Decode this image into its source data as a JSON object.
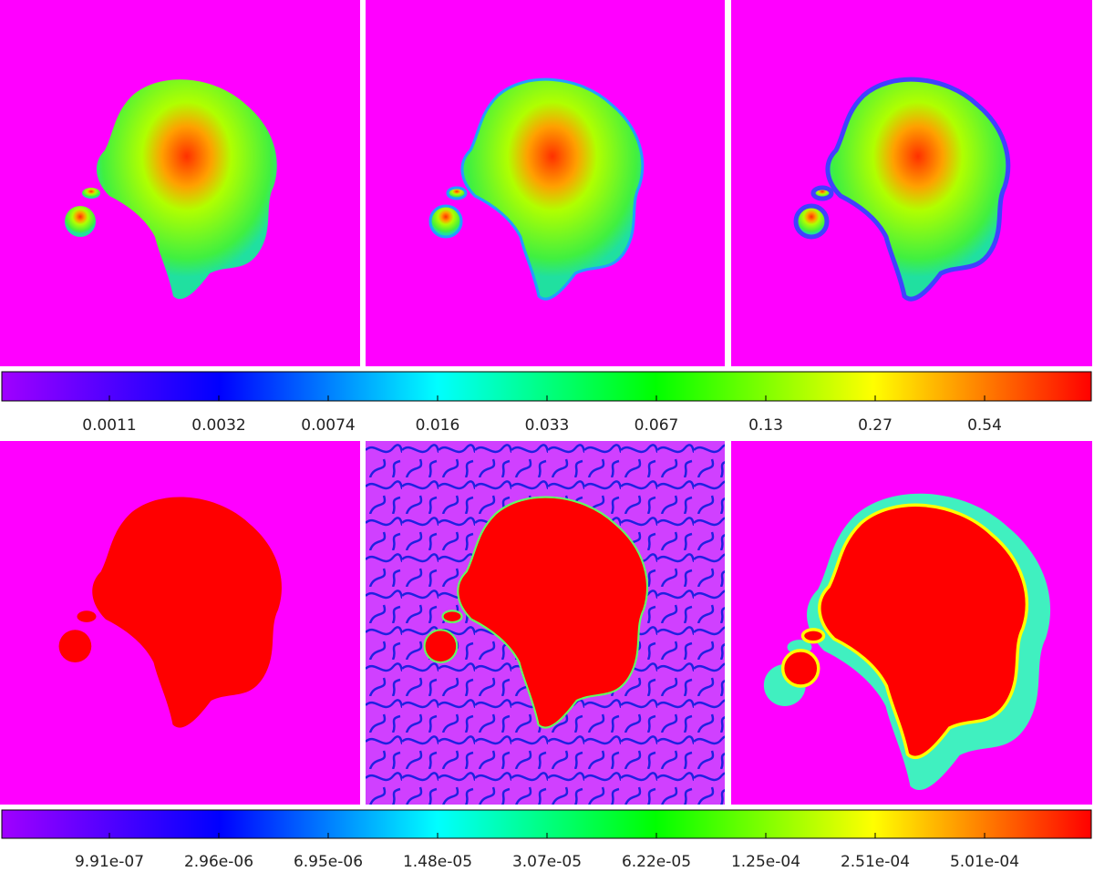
{
  "colorbars": [
    {
      "ticks": [
        "0.0011",
        "0.0032",
        "0.0074",
        "0.016",
        "0.033",
        "0.067",
        "0.13",
        "0.27",
        "0.54"
      ]
    },
    {
      "ticks": [
        "9.91e-07",
        "2.96e-06",
        "6.95e-06",
        "1.48e-05",
        "3.07e-05",
        "6.22e-05",
        "1.25e-04",
        "2.51e-04",
        "5.01e-04"
      ]
    }
  ]
}
